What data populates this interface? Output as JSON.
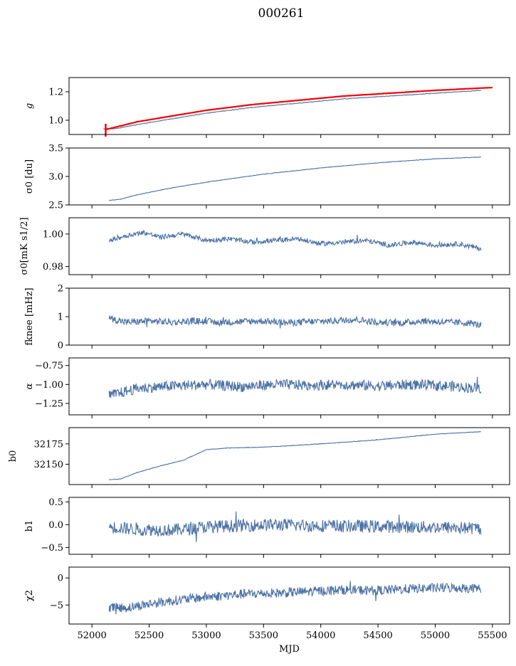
{
  "figure": {
    "title": "000261"
  },
  "colors": {
    "series_blue": "#4c72a6",
    "fit_red": "#ff0000"
  },
  "chart_data": [
    {
      "type": "line",
      "ylabel": "g",
      "xlim": [
        51800,
        55650
      ],
      "ylim": [
        0.9,
        1.3
      ],
      "yticks": [
        1.0,
        1.2
      ],
      "yticklabels": [
        "1.0",
        "1.2"
      ],
      "series": [
        {
          "color": "blue",
          "x": [
            52100,
            52200,
            52400,
            52700,
            53000,
            53400,
            53800,
            54200,
            54600,
            55000,
            55400
          ],
          "y": [
            0.94,
            0.94,
            0.97,
            1.01,
            1.05,
            1.09,
            1.12,
            1.15,
            1.17,
            1.19,
            1.21
          ]
        },
        {
          "color": "red",
          "x": [
            52120,
            52200,
            52400,
            52700,
            53000,
            53400,
            53800,
            54200,
            54600,
            55000,
            55500
          ],
          "y": [
            0.935,
            0.95,
            0.99,
            1.03,
            1.07,
            1.11,
            1.14,
            1.17,
            1.19,
            1.21,
            1.23
          ]
        }
      ]
    },
    {
      "type": "line",
      "ylabel": "σ0 [du]",
      "xlim": [
        51800,
        55650
      ],
      "ylim": [
        2.5,
        3.5
      ],
      "yticks": [
        2.5,
        3.0,
        3.5
      ],
      "yticklabels": [
        "2.5",
        "3.0",
        "3.5"
      ],
      "series": [
        {
          "color": "blue",
          "x": [
            52150,
            52250,
            52400,
            52700,
            53000,
            53500,
            54000,
            54500,
            55000,
            55400
          ],
          "y": [
            2.58,
            2.6,
            2.68,
            2.8,
            2.9,
            3.04,
            3.15,
            3.24,
            3.31,
            3.34
          ]
        }
      ]
    },
    {
      "type": "line",
      "ylabel": "σ0[mK s1/2]",
      "xlim": [
        51800,
        55650
      ],
      "ylim": [
        0.975,
        1.01
      ],
      "yticks": [
        0.98,
        1.0
      ],
      "yticklabels": [
        "0.98",
        "1.00"
      ],
      "series": [
        {
          "color": "blue",
          "x": [
            52150,
            52300,
            52450,
            52600,
            52800,
            53000,
            53200,
            53400,
            53600,
            53800,
            54000,
            54200,
            54400,
            54600,
            54800,
            55000,
            55200,
            55400
          ],
          "y": [
            0.996,
            0.999,
            1.001,
            0.998,
            1.0,
            0.996,
            0.997,
            0.995,
            0.996,
            0.997,
            0.994,
            0.995,
            0.996,
            0.993,
            0.995,
            0.993,
            0.994,
            0.991
          ]
        }
      ]
    },
    {
      "type": "line",
      "ylabel": "fknee [mHz]",
      "xlim": [
        51800,
        55650
      ],
      "ylim": [
        0,
        2
      ],
      "yticks": [
        0,
        1,
        2
      ],
      "yticklabels": [
        "0",
        "1",
        "2"
      ],
      "series": [
        {
          "color": "blue",
          "x": [
            52150,
            52300,
            52500,
            52700,
            52900,
            53100,
            53300,
            53500,
            53700,
            53900,
            54100,
            54300,
            54500,
            54700,
            54900,
            55100,
            55300,
            55400
          ],
          "y": [
            0.95,
            0.8,
            0.85,
            0.8,
            0.85,
            0.8,
            0.82,
            0.85,
            0.78,
            0.82,
            0.85,
            0.9,
            0.8,
            0.78,
            0.85,
            0.8,
            0.78,
            0.7
          ]
        }
      ]
    },
    {
      "type": "line",
      "ylabel": "α",
      "xlim": [
        51800,
        55650
      ],
      "ylim": [
        -1.4,
        -0.65
      ],
      "yticks": [
        -1.25,
        -1.0,
        -0.75
      ],
      "yticklabels": [
        "−1.25",
        "−1.00",
        "−0.75"
      ],
      "series": [
        {
          "color": "blue",
          "x": [
            52150,
            52400,
            52700,
            53000,
            53300,
            53600,
            53900,
            54200,
            54500,
            54800,
            55100,
            55400
          ],
          "y": [
            -1.15,
            -1.05,
            -1.02,
            -1.0,
            -1.03,
            -1.0,
            -1.01,
            -1.0,
            -1.02,
            -1.0,
            -1.02,
            -1.05
          ]
        }
      ]
    },
    {
      "type": "line",
      "ylabel": "b0",
      "xlim": [
        51800,
        55650
      ],
      "ylim": [
        32125,
        32195
      ],
      "yticks": [
        32150,
        32175
      ],
      "yticklabels": [
        "32150",
        "32175"
      ],
      "series": [
        {
          "color": "blue",
          "x": [
            52150,
            52250,
            52400,
            52600,
            52800,
            53000,
            53200,
            53500,
            54000,
            54500,
            55000,
            55400
          ],
          "y": [
            32131,
            32132,
            32140,
            32148,
            32155,
            32168,
            32170,
            32171,
            32175,
            32180,
            32187,
            32190
          ]
        }
      ]
    },
    {
      "type": "line",
      "ylabel": "b1",
      "xlim": [
        51800,
        55650
      ],
      "ylim": [
        -0.65,
        0.6
      ],
      "yticks": [
        -0.5,
        0.0,
        0.5
      ],
      "yticklabels": [
        "−0.5",
        "0.0",
        "0.5"
      ],
      "series": [
        {
          "color": "blue",
          "x": [
            52150,
            52400,
            52700,
            53000,
            53300,
            53600,
            53900,
            54200,
            54500,
            54800,
            55100,
            55400
          ],
          "y": [
            -0.05,
            -0.1,
            -0.12,
            -0.05,
            -0.02,
            0.0,
            -0.02,
            -0.03,
            -0.04,
            -0.05,
            -0.06,
            -0.08
          ]
        }
      ]
    },
    {
      "type": "line",
      "ylabel": "χ2",
      "xlim": [
        51800,
        55650
      ],
      "ylim": [
        -8.5,
        2.0
      ],
      "yticks": [
        -5,
        0
      ],
      "yticklabels": [
        "−5",
        "0"
      ],
      "xticks": [
        52000,
        52500,
        53000,
        53500,
        54000,
        54500,
        55000,
        55500
      ],
      "xticklabels": [
        "52000",
        "52500",
        "53000",
        "53500",
        "54000",
        "54500",
        "55000",
        "55500"
      ],
      "xlabel": "MJD",
      "series": [
        {
          "color": "blue",
          "x": [
            52150,
            52300,
            52500,
            52700,
            53000,
            53300,
            53600,
            53900,
            54200,
            54500,
            54800,
            55100,
            55400
          ],
          "y": [
            -5.5,
            -5.5,
            -4.8,
            -4.2,
            -3.5,
            -3.0,
            -2.8,
            -2.5,
            -2.2,
            -2.3,
            -2.0,
            -1.8,
            -1.9
          ]
        }
      ]
    }
  ]
}
